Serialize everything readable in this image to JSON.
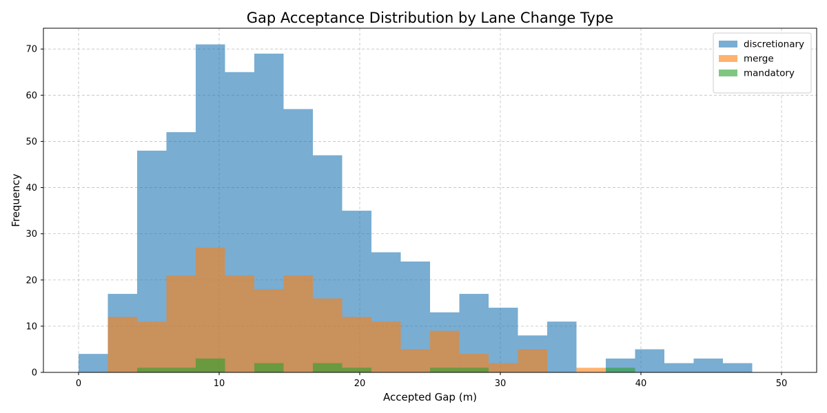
{
  "chart_data": {
    "type": "bar",
    "title": "Gap Acceptance Distribution by Lane Change Type",
    "xlabel": "Accepted Gap (m)",
    "ylabel": "Frequency",
    "xlim": [
      -2.5,
      52.5
    ],
    "ylim": [
      0,
      74.5
    ],
    "xticks": [
      0,
      10,
      20,
      30,
      40,
      50
    ],
    "yticks": [
      0,
      10,
      20,
      30,
      40,
      50,
      60,
      70
    ],
    "grid": true,
    "legend_position": "top-right",
    "bin_edges": [
      0,
      2.083,
      4.167,
      6.25,
      8.333,
      10.417,
      12.5,
      14.583,
      16.667,
      18.75,
      20.833,
      22.917,
      25,
      27.083,
      29.167,
      31.25,
      33.333,
      35.417,
      37.5,
      39.583,
      41.667,
      43.75,
      45.833,
      47.917,
      50
    ],
    "series": [
      {
        "name": "discretionary",
        "color": "#1f77b4",
        "opacity": 0.6,
        "values": [
          4,
          17,
          48,
          52,
          71,
          65,
          69,
          57,
          47,
          35,
          26,
          24,
          13,
          17,
          14,
          8,
          11,
          0,
          3,
          5,
          2,
          3,
          2,
          0
        ]
      },
      {
        "name": "merge",
        "color": "#ff7f0e",
        "opacity": 0.6,
        "values": [
          0,
          12,
          11,
          21,
          27,
          21,
          18,
          21,
          16,
          12,
          11,
          5,
          9,
          4,
          2,
          5,
          0,
          1,
          0,
          0,
          0,
          0,
          0,
          0
        ]
      },
      {
        "name": "mandatory",
        "color": "#2ca02c",
        "opacity": 0.6,
        "values": [
          0,
          0,
          1,
          1,
          3,
          0,
          2,
          0,
          2,
          1,
          0,
          0,
          1,
          1,
          0,
          0,
          0,
          0,
          1,
          0,
          0,
          0,
          0,
          0
        ]
      }
    ]
  }
}
